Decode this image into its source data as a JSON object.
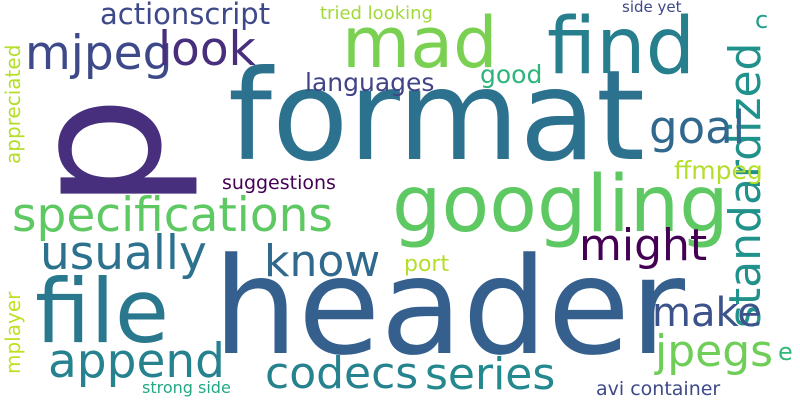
{
  "words": [
    {
      "text": "header",
      "color": "#355f8d"
    },
    {
      "text": "format",
      "color": "#2c728e"
    },
    {
      "text": "p",
      "color": "#472f7d"
    },
    {
      "text": "googling",
      "color": "#5ec962"
    },
    {
      "text": "file",
      "color": "#2a788e"
    },
    {
      "text": "find",
      "color": "#277f8e"
    },
    {
      "text": "mad",
      "color": "#7ad151"
    },
    {
      "text": "specifications",
      "color": "#5ec962"
    },
    {
      "text": "mjpeg",
      "color": "#3e4989"
    },
    {
      "text": "look",
      "color": "#472f7d"
    },
    {
      "text": "usually",
      "color": "#2c728e"
    },
    {
      "text": "know",
      "color": "#31688e"
    },
    {
      "text": "might",
      "color": "#440154"
    },
    {
      "text": "standardized",
      "color": "#21918c"
    },
    {
      "text": "goal",
      "color": "#31688e"
    },
    {
      "text": "append",
      "color": "#26828e"
    },
    {
      "text": "codecs",
      "color": "#26828e"
    },
    {
      "text": "series",
      "color": "#23898e"
    },
    {
      "text": "jpegs",
      "color": "#6ece58"
    },
    {
      "text": "make",
      "color": "#3b528b"
    },
    {
      "text": "actionscript",
      "color": "#3e4989"
    },
    {
      "text": "languages",
      "color": "#414487"
    },
    {
      "text": "good",
      "color": "#2fb47c"
    },
    {
      "text": "ffmpeg",
      "color": "#b5de2b"
    },
    {
      "text": "suggestions",
      "color": "#440154"
    },
    {
      "text": "port",
      "color": "#b5de2b"
    },
    {
      "text": "tried looking",
      "color": "#a0da39"
    },
    {
      "text": "side yet",
      "color": "#3e4989"
    },
    {
      "text": "appreciated",
      "color": "#b5de2b"
    },
    {
      "text": "mplayer",
      "color": "#c2df23"
    },
    {
      "text": "strong side",
      "color": "#22a884"
    },
    {
      "text": "avi container",
      "color": "#3e4989"
    },
    {
      "text": "c",
      "color": "#1f9e89"
    },
    {
      "text": "e",
      "color": "#35b779"
    }
  ]
}
